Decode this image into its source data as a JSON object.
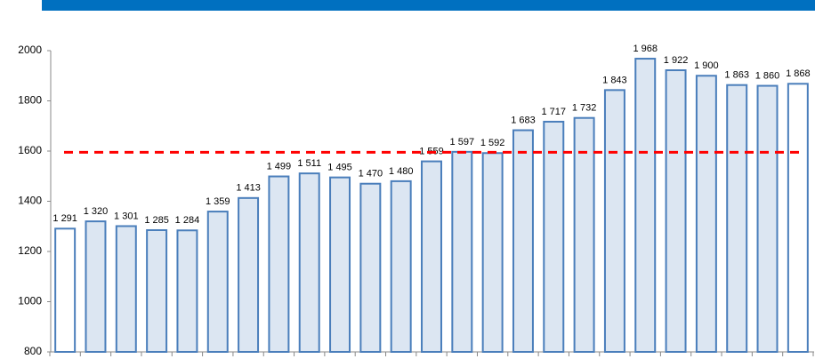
{
  "chart_data": {
    "type": "bar",
    "categories": [
      null,
      null,
      null,
      null,
      null,
      null,
      null,
      null,
      null,
      null,
      null,
      null,
      null,
      null,
      null,
      null,
      null,
      null,
      null,
      null,
      null,
      null,
      null,
      null,
      null
    ],
    "values": [
      1291,
      1320,
      1301,
      1285,
      1284,
      1359,
      1413,
      1499,
      1511,
      1495,
      1470,
      1480,
      1559,
      1597,
      1592,
      1683,
      1717,
      1732,
      1843,
      1968,
      1922,
      1900,
      1863,
      1860,
      1868
    ],
    "value_labels": [
      "1 291",
      "1 320",
      "1 301",
      "1 285",
      "1 284",
      "1 359",
      "1 413",
      "1 499",
      "1 511",
      "1 495",
      "1 470",
      "1 480",
      "1 559",
      "1 597",
      "1 592",
      "1 683",
      "1 717",
      "1 732",
      "1 843",
      "1 968",
      "1 922",
      "1 900",
      "1 863",
      "1 860",
      "1 868"
    ],
    "colors": [
      "#ffffff",
      "#dce6f2",
      "#dce6f2",
      "#dce6f2",
      "#dce6f2",
      "#dce6f2",
      "#dce6f2",
      "#dce6f2",
      "#dce6f2",
      "#dce6f2",
      "#dce6f2",
      "#dce6f2",
      "#dce6f2",
      "#dce6f2",
      "#dce6f2",
      "#dce6f2",
      "#dce6f2",
      "#dce6f2",
      "#dce6f2",
      "#dce6f2",
      "#dce6f2",
      "#dce6f2",
      "#dce6f2",
      "#dce6f2",
      "#ffffff"
    ],
    "border_color": "#4a7ebb",
    "ylim": [
      800,
      2000
    ],
    "yticks": [
      800,
      1000,
      1200,
      1400,
      1600,
      1800,
      2000
    ],
    "reference_line": {
      "value": 1595,
      "color": "#ff0000"
    }
  }
}
